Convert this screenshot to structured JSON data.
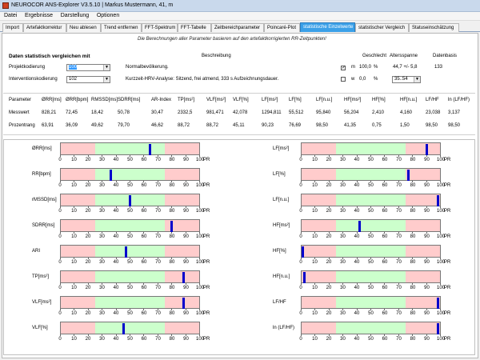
{
  "window": {
    "title": "NEUROCOR ANS-Explorer V3.5.10  |  Markus Mustermann, 41, m"
  },
  "menu": [
    "Datei",
    "Ergebnisse",
    "Darstellung",
    "Optionen"
  ],
  "tabs": [
    {
      "label": "Import",
      "active": false
    },
    {
      "label": "Artefaktkorrektur",
      "active": false
    },
    {
      "label": "Neu ablesen",
      "active": false
    },
    {
      "label": "Trend entfernen",
      "active": false
    },
    {
      "label": "FFT-Spektrum",
      "active": false
    },
    {
      "label": "FFT-Tabelle",
      "active": false
    },
    {
      "label": "Zeitbereichparameter",
      "active": false
    },
    {
      "label": "Poincaré-Plot",
      "active": false
    },
    {
      "label": "statistische Einzelwerte",
      "active": true
    },
    {
      "label": "statistischer Vergleich",
      "active": false
    },
    {
      "label": "Statuseinschätzung",
      "active": false
    }
  ],
  "info_text": "Die Berechnungen aller Parameter basieren auf den artefaktkorrigierten RR-Zeitpunkten!",
  "controls": {
    "heading": "Daten statistisch vergleichen mit",
    "beschreibung_header": "Beschreibung",
    "geschlecht_header": "Geschlecht",
    "altersspanne_header": "Altersspanne",
    "datenbasis_header": "Datenbasis",
    "projekt_label": "Projektkodierung",
    "projekt_value": "100",
    "projekt_desc": "Normalbevölkerung.",
    "intervention_label": "Interventionskodierung",
    "intervention_value": "102",
    "intervention_desc": "Kurzzeit-HRV-Analyse: Sitzend, frei atmend, 333 s Aufzeichnungsdauer.",
    "m_label": "m",
    "m_pct": "100,0",
    "m_unit": "%",
    "m_checked": true,
    "w_label": "w",
    "w_pct": "0,0",
    "w_unit": "%",
    "w_checked": false,
    "age_range": "44,7 +/- 5,8",
    "age_select": "35..54",
    "datenbasis_value": "133"
  },
  "table": {
    "headers": [
      "Parameter",
      "ØRR[ms]",
      "ØRR[bpm]",
      "RMSSD[ms]",
      "SDRR[ms]",
      "AR-Index",
      "TP[ms²]",
      "VLF[ms²]",
      "VLF[%]",
      "LF[ms²]",
      "LF[%]",
      "LF[n.u.]",
      "HF[ms²]",
      "HF[%]",
      "HF[n.u.]",
      "LF/HF",
      "ln (LF/HF)"
    ],
    "rows": [
      [
        "Messwert",
        "828,21",
        "72,45",
        "18,42",
        "50,78",
        "30,47",
        "2332,5",
        "981,471",
        "42,078",
        "1294,811",
        "55,512",
        "95,840",
        "56,204",
        "2,410",
        "4,160",
        "23,038",
        "3,137"
      ],
      [
        "Prozentrang",
        "63,91",
        "36,09",
        "49,62",
        "79,70",
        "46,62",
        "88,72",
        "88,72",
        "45,11",
        "90,23",
        "76,69",
        "98,50",
        "41,35",
        "0,75",
        "1,50",
        "98,50",
        "98,50"
      ]
    ]
  },
  "tick_labels": [
    "0",
    "10",
    "20",
    "30",
    "40",
    "50",
    "60",
    "70",
    "80",
    "90",
    "100"
  ],
  "pr_label": "PR",
  "colors": {
    "low": "#ffcccc",
    "normal": "#ccffcc",
    "high": "#ffcccc",
    "marker": "#0000cc",
    "active_tab": "#3ba0e8"
  },
  "bars_left": [
    {
      "label": "ØRR[ms]",
      "pr": 63.91
    },
    {
      "label": "RR[bpm]",
      "pr": 36.09
    },
    {
      "label": "rMSSD[ms]",
      "pr": 49.62
    },
    {
      "label": "SDRR[ms]",
      "pr": 79.7
    },
    {
      "label": "ARI",
      "pr": 46.62
    },
    {
      "label": "TP[ms²]",
      "pr": 88.72
    },
    {
      "label": "VLF[ms²]",
      "pr": 88.72
    },
    {
      "label": "VLF[%]",
      "pr": 45.11
    }
  ],
  "bars_right": [
    {
      "label": "LF[ms²]",
      "pr": 90.23
    },
    {
      "label": "LF[%]",
      "pr": 76.69
    },
    {
      "label": "LF[n.u.]",
      "pr": 98.5
    },
    {
      "label": "HF[ms²]",
      "pr": 41.35
    },
    {
      "label": "HF[%]",
      "pr": 0.75
    },
    {
      "label": "HF[n.u.]",
      "pr": 1.5
    },
    {
      "label": "LF/HF",
      "pr": 98.5
    },
    {
      "label": "ln (LF/HF)",
      "pr": 98.5
    }
  ]
}
